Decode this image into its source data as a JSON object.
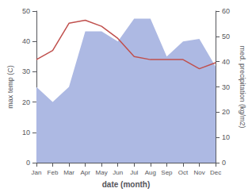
{
  "chart_data": {
    "type": "line",
    "categories": [
      "Jan",
      "Feb",
      "Mar",
      "Apr",
      "May",
      "Jun",
      "Jul",
      "Aug",
      "Sep",
      "Oct",
      "Nov",
      "Dec"
    ],
    "series": [
      {
        "type": "area",
        "color": "#adb9e3",
        "axis": "y2",
        "values": [
          30,
          24,
          30,
          52,
          52,
          48,
          57,
          57,
          42,
          48,
          49,
          38
        ]
      },
      {
        "type": "line",
        "color": "#c0504d",
        "values": [
          34,
          37,
          46,
          47,
          45,
          41,
          35,
          34,
          34,
          34,
          31,
          33
        ]
      }
    ],
    "xlabel": "date (month)",
    "ylabel": "max temp (C)",
    "y2label": "med. precipitation (kg/m2)",
    "ylim": [
      0,
      50
    ],
    "yticks": [
      0,
      10,
      20,
      30,
      40,
      50
    ],
    "y2lim": [
      0,
      60
    ],
    "y2ticks": [
      0,
      10,
      20,
      30,
      40,
      50,
      60
    ],
    "grid": false
  }
}
